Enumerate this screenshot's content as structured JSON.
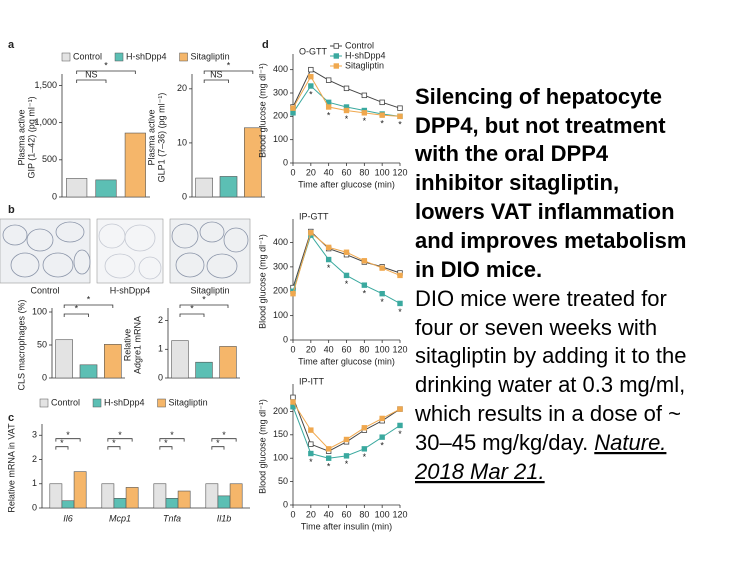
{
  "figure": {
    "panel_labels": [
      "a",
      "b",
      "c",
      "d"
    ],
    "image_labels": [
      "Control",
      "H-shDpp4",
      "Sitagliptin"
    ]
  },
  "caption": {
    "bold_lines": [
      "Silencing of hepatocyte",
      "DPP4, but not treatment",
      "with the oral DPP4",
      "inhibitor sitagliptin,",
      "lowers VAT inflammation",
      "and improves metabolism",
      "in DIO mice."
    ],
    "lines": [
      "DIO mice were treated for",
      "four or seven weeks with",
      "sitagliptin by adding it to the",
      "drinking water at 0.3 mg/ml,",
      "which results in a dose of ~",
      "30–45 mg/kg/day."
    ],
    "citation": [
      "Nature.",
      "2018 Mar 21."
    ]
  },
  "chart_data": [
    {
      "type": "bar",
      "ylabel": [
        "Plasma active",
        "GIP (1–42) (pg ml⁻¹)"
      ],
      "categories": [
        "Control",
        "H-shDpp4",
        "Sitagliptin"
      ],
      "colors": [
        "#e3e3e3",
        "#5cbfb4",
        "#f5b66a"
      ],
      "values": [
        250,
        230,
        860
      ],
      "ylim": [
        0,
        1600
      ],
      "yticks": [
        0,
        500,
        {
          "value": 1000,
          "label": "1,000"
        },
        {
          "value": 1500,
          "label": "1,500"
        }
      ],
      "annotations": [
        "NS",
        "*"
      ],
      "legend": true
    },
    {
      "type": "bar",
      "ylabel": [
        "Plasma active",
        "GLP1 (7–36) (pg ml⁻¹)"
      ],
      "categories": [
        "Control",
        "H-shDpp4",
        "Sitagliptin"
      ],
      "colors": [
        "#e3e3e3",
        "#5cbfb4",
        "#f5b66a"
      ],
      "values": [
        3.5,
        3.8,
        12.8
      ],
      "ylim": [
        0,
        22
      ],
      "yticks": [
        0,
        10,
        20
      ],
      "annotations": [
        "NS",
        "*"
      ],
      "legend": false
    },
    {
      "type": "bar",
      "ylabel": [
        "CLS macrophages (%)"
      ],
      "categories": [
        "Control",
        "H-shDpp4",
        "Sitagliptin"
      ],
      "colors": [
        "#e3e3e3",
        "#5cbfb4",
        "#f5b66a"
      ],
      "values": [
        58,
        20,
        51
      ],
      "ylim": [
        0,
        100
      ],
      "yticks": [
        0,
        50,
        100
      ],
      "annotations": [
        "*",
        "*"
      ],
      "legend": false
    },
    {
      "type": "bar",
      "ylabel": [
        "Relative",
        "Adgre1 mRNA"
      ],
      "categories": [
        "Control",
        "H-shDpp4",
        "Sitagliptin"
      ],
      "colors": [
        "#e3e3e3",
        "#5cbfb4",
        "#f5b66a"
      ],
      "values": [
        1.3,
        0.55,
        1.1
      ],
      "ylim": [
        0,
        2.3
      ],
      "yticks": [
        0,
        1,
        2
      ],
      "annotations": [
        "*",
        "*"
      ],
      "legend": false
    },
    {
      "type": "grouped_bar",
      "ylabel": [
        "Relative mRNA in VAT"
      ],
      "categories": [
        "Il6",
        "Mcp1",
        "Tnfa",
        "Il1b"
      ],
      "series": [
        {
          "name": "Control",
          "color": "#e3e3e3",
          "values": [
            1,
            1,
            1,
            1
          ]
        },
        {
          "name": "H-shDpp4",
          "color": "#5cbfb4",
          "values": [
            0.3,
            0.4,
            0.4,
            0.5
          ]
        },
        {
          "name": "Sitagliptin",
          "color": "#f5b66a",
          "values": [
            1.5,
            0.85,
            0.7,
            1.0
          ]
        }
      ],
      "ylim": [
        0,
        3.3
      ],
      "yticks": [
        0,
        1,
        2,
        3
      ],
      "annotations": [
        "*",
        "*",
        "*",
        "*",
        "*",
        "*",
        "*",
        "*"
      ],
      "legend": true
    },
    {
      "type": "line",
      "title": "O-GTT",
      "ylabel": [
        "Blood glucose (mg dl⁻¹)"
      ],
      "xlabel": "Time after glucose (min)",
      "x": [
        0,
        20,
        40,
        60,
        80,
        100,
        120
      ],
      "series": [
        {
          "name": "Control",
          "color": "#444444",
          "marker_fill": "#ffffff",
          "values": [
            240,
            400,
            355,
            320,
            290,
            260,
            235
          ]
        },
        {
          "name": "H-shDpp4",
          "color": "#3aa99f",
          "marker_fill": "#3aa99f",
          "values": [
            215,
            330,
            260,
            240,
            225,
            210,
            200
          ]
        },
        {
          "name": "Sitagliptin",
          "color": "#f0a84e",
          "marker_fill": "#f0a84e",
          "values": [
            235,
            370,
            240,
            225,
            215,
            205,
            200
          ]
        }
      ],
      "xlim": [
        0,
        120
      ],
      "xticks": [
        0,
        20,
        40,
        60,
        80,
        100,
        120
      ],
      "ylim": [
        0,
        450
      ],
      "yticks": [
        0,
        100,
        200,
        300,
        400
      ],
      "annotations": [
        "*",
        "*",
        "*",
        "*",
        "*",
        "*"
      ],
      "legend": true
    },
    {
      "type": "line",
      "title": "IP-GTT",
      "ylabel": [
        "Blood glucose (mg dl⁻¹)"
      ],
      "xlabel": "Time after glucose (min)",
      "x": [
        0,
        20,
        40,
        60,
        80,
        100,
        120
      ],
      "series": [
        {
          "name": "Control",
          "color": "#444444",
          "marker_fill": "#ffffff",
          "values": [
            215,
            445,
            375,
            350,
            320,
            300,
            275
          ]
        },
        {
          "name": "H-shDpp4",
          "color": "#3aa99f",
          "marker_fill": "#3aa99f",
          "values": [
            200,
            430,
            330,
            265,
            225,
            190,
            150
          ]
        },
        {
          "name": "Sitagliptin",
          "color": "#f0a84e",
          "marker_fill": "#f0a84e",
          "values": [
            190,
            440,
            380,
            360,
            325,
            295,
            265
          ]
        }
      ],
      "xlim": [
        0,
        120
      ],
      "xticks": [
        0,
        20,
        40,
        60,
        80,
        100,
        120
      ],
      "ylim": [
        0,
        480
      ],
      "yticks": [
        0,
        100,
        200,
        300,
        400
      ],
      "annotations": [
        "*",
        "*",
        "*",
        "*",
        "*"
      ],
      "legend": false
    },
    {
      "type": "line",
      "title": "IP-ITT",
      "ylabel": [
        "Blood glucose (mg dl⁻¹)"
      ],
      "xlabel": "Time after insulin (min)",
      "x": [
        0,
        20,
        40,
        60,
        80,
        100,
        120
      ],
      "series": [
        {
          "name": "Control",
          "color": "#444444",
          "marker_fill": "#ffffff",
          "values": [
            230,
            130,
            115,
            135,
            160,
            180,
            205
          ]
        },
        {
          "name": "H-shDpp4",
          "color": "#3aa99f",
          "marker_fill": "#3aa99f",
          "values": [
            210,
            110,
            100,
            105,
            120,
            145,
            170
          ]
        },
        {
          "name": "Sitagliptin",
          "color": "#f0a84e",
          "marker_fill": "#f0a84e",
          "values": [
            220,
            160,
            120,
            140,
            165,
            185,
            205
          ]
        }
      ],
      "xlim": [
        0,
        120
      ],
      "xticks": [
        0,
        20,
        40,
        60,
        80,
        100,
        120
      ],
      "ylim": [
        0,
        250
      ],
      "yticks": [
        0,
        50,
        100,
        150,
        200
      ],
      "annotations": [
        "*",
        "*",
        "*",
        "*",
        "*",
        "*"
      ],
      "legend": false
    }
  ]
}
